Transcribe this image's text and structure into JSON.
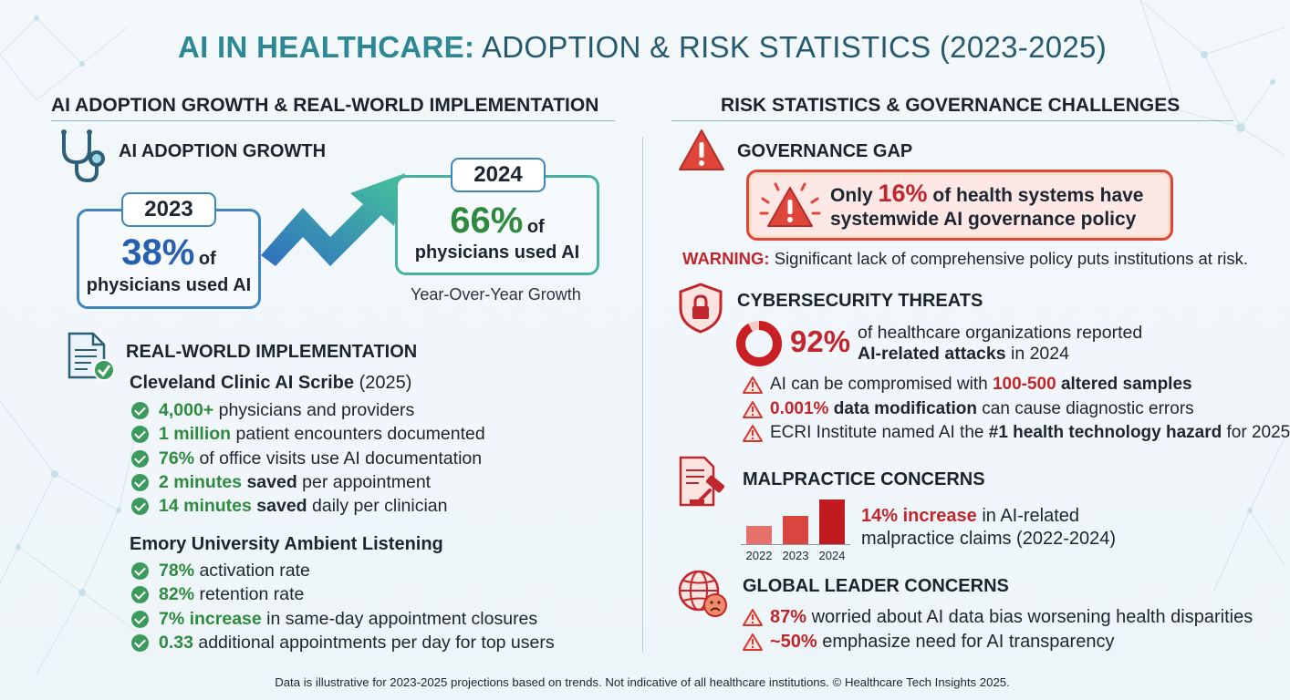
{
  "title": {
    "bold_part": "AI IN HEALTHCARE:",
    "rest": "ADOPTION & RISK STATISTICS (2023-2025)"
  },
  "left": {
    "section_title": "AI ADOPTION GROWTH & REAL-WORLD IMPLEMENTATION",
    "adoption": {
      "heading": "AI ADOPTION GROWTH",
      "y2023": {
        "year": "2023",
        "percent": "38%",
        "of": "of",
        "caption": "physicians used AI",
        "value": 38
      },
      "y2024": {
        "year": "2024",
        "percent": "66%",
        "of": "of",
        "caption": "physicians used AI",
        "value": 66
      },
      "growth_caption": "Year-Over-Year Growth"
    },
    "implementation": {
      "heading": "REAL-WORLD IMPLEMENTATION",
      "cleveland": {
        "name": "Cleveland Clinic AI Scribe",
        "year": "(2025)",
        "items": [
          {
            "hl": "4,000+",
            "rest": " physicians and providers"
          },
          {
            "hl": "1 million",
            "rest": " patient encounters documented"
          },
          {
            "hl": "76%",
            "rest": " of office visits use AI documentation"
          },
          {
            "hl": "2 minutes",
            "mid": " saved",
            "rest": " per appointment"
          },
          {
            "hl": "14 minutes",
            "mid": " saved",
            "rest": " daily per clinician"
          }
        ]
      },
      "emory": {
        "name": "Emory University Ambient Listening",
        "items": [
          {
            "hl": "78%",
            "rest": " activation rate"
          },
          {
            "hl": "82%",
            "rest": " retention rate"
          },
          {
            "hl": "7% increase",
            "rest": " in same-day appointment closures"
          },
          {
            "hl": "0.33",
            "rest": " additional appointments per day for top users"
          }
        ]
      }
    }
  },
  "right": {
    "section_title": "RISK STATISTICS & GOVERNANCE CHALLENGES",
    "governance": {
      "heading": "GOVERNANCE GAP",
      "line1_pre": "Only ",
      "percent": "16%",
      "line1_post": " of health systems have",
      "line2": "systemwide AI governance policy",
      "warning_label": "WARNING:",
      "warning_text": " Significant lack of comprehensive policy puts institutions at risk."
    },
    "cyber": {
      "heading": "CYBERSECURITY THREATS",
      "percent": "92%",
      "value": 92,
      "line1": "of healthcare organizations reported",
      "line2_bold": "AI-related attacks",
      "line2_rest": " in 2024",
      "items": [
        {
          "pre": "AI can be compromised with ",
          "hl": "100-500",
          "bold": " altered samples",
          "post": ""
        },
        {
          "pre": "",
          "hl": "0.001%",
          "bold": " data modification",
          "post": " can cause diagnostic errors"
        },
        {
          "pre": "ECRI Institute named AI the ",
          "hl": "",
          "bold": "#1 health technology hazard",
          "post": " for 2025"
        }
      ]
    },
    "malpractice": {
      "heading": "MALPRACTICE CONCERNS",
      "hl": "14% increase",
      "line1_rest": " in AI-related",
      "line2": "malpractice claims (2022-2024)",
      "bars": [
        {
          "label": "2022",
          "color": "#e8716b"
        },
        {
          "label": "2023",
          "color": "#d9453f"
        },
        {
          "label": "2024",
          "color": "#c11b20"
        }
      ]
    },
    "global": {
      "heading": "GLOBAL LEADER CONCERNS",
      "items": [
        {
          "hl": "87%",
          "rest": " worried about AI data bias worsening health disparities"
        },
        {
          "hl": "~50%",
          "rest": " emphasize need for AI transparency"
        }
      ]
    }
  },
  "footer": "Data is illustrative for 2023-2025 projections based on trends. Not indicative of all healthcare institutions. © Healthcare Tech Insights 2025.",
  "colors": {
    "accent_teal": "#2e8794",
    "accent_blue": "#3f86bf",
    "accent_green": "#2e8a3e",
    "danger_red": "#c0262b"
  }
}
